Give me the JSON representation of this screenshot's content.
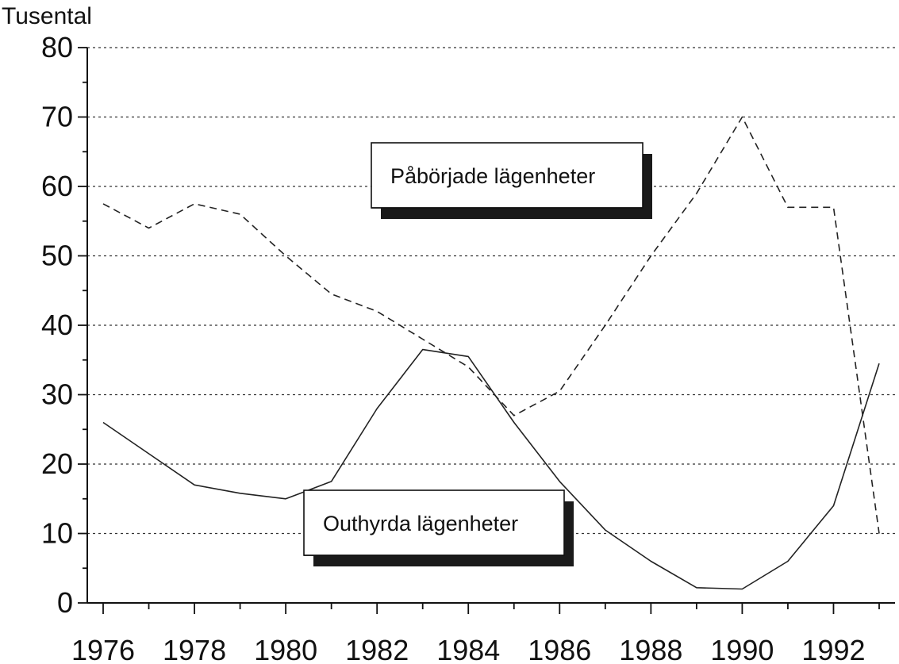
{
  "chart_data": {
    "type": "line",
    "title": "",
    "ylabel": "Tusental",
    "xlabel": "",
    "ylim": [
      0,
      80
    ],
    "xlim": [
      1976,
      1993
    ],
    "y_ticks": [
      0,
      10,
      20,
      30,
      40,
      50,
      60,
      70,
      80
    ],
    "x_tick_labels": [
      "1976",
      "1978",
      "1980",
      "1982",
      "1984",
      "1986",
      "1988",
      "1990",
      "1992"
    ],
    "grid": true,
    "x": [
      1976,
      1977,
      1978,
      1979,
      1980,
      1981,
      1982,
      1983,
      1984,
      1985,
      1986,
      1987,
      1988,
      1989,
      1990,
      1991,
      1992,
      1993
    ],
    "series": [
      {
        "name": "Påbörjade lägenheter",
        "style": "dashed",
        "color": "#222222",
        "values": [
          57.5,
          54,
          57.5,
          56,
          50,
          44.5,
          42,
          38,
          34,
          27,
          30.5,
          40,
          50,
          59,
          70,
          57,
          57,
          10
        ]
      },
      {
        "name": "Outhyrda lägenheter",
        "style": "solid",
        "color": "#222222",
        "values": [
          26,
          21.5,
          17,
          15.8,
          15,
          17.5,
          28,
          36.5,
          35.5,
          26,
          17.5,
          10.5,
          6,
          2.2,
          2,
          6,
          14,
          34.5
        ]
      }
    ]
  }
}
